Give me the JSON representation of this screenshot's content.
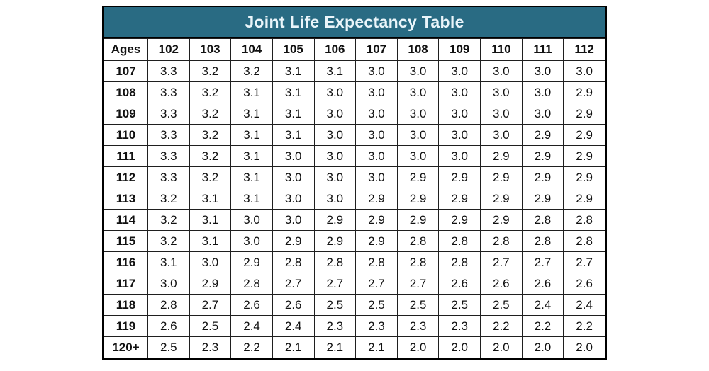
{
  "colors": {
    "title_bg": "#296b83",
    "title_text": "#eaf5fa",
    "border": "#1f1f1f",
    "cell_text": "#111111"
  },
  "chart_data": {
    "type": "table",
    "title": "Joint Life Expectancy Table",
    "columns": [
      "Ages",
      "102",
      "103",
      "104",
      "105",
      "106",
      "107",
      "108",
      "109",
      "110",
      "111",
      "112"
    ],
    "rows": [
      {
        "age": "107",
        "values": [
          "3.3",
          "3.2",
          "3.2",
          "3.1",
          "3.1",
          "3.0",
          "3.0",
          "3.0",
          "3.0",
          "3.0",
          "3.0"
        ]
      },
      {
        "age": "108",
        "values": [
          "3.3",
          "3.2",
          "3.1",
          "3.1",
          "3.0",
          "3.0",
          "3.0",
          "3.0",
          "3.0",
          "3.0",
          "2.9"
        ]
      },
      {
        "age": "109",
        "values": [
          "3.3",
          "3.2",
          "3.1",
          "3.1",
          "3.0",
          "3.0",
          "3.0",
          "3.0",
          "3.0",
          "3.0",
          "2.9"
        ]
      },
      {
        "age": "110",
        "values": [
          "3.3",
          "3.2",
          "3.1",
          "3.1",
          "3.0",
          "3.0",
          "3.0",
          "3.0",
          "3.0",
          "2.9",
          "2.9"
        ]
      },
      {
        "age": "111",
        "values": [
          "3.3",
          "3.2",
          "3.1",
          "3.0",
          "3.0",
          "3.0",
          "3.0",
          "3.0",
          "2.9",
          "2.9",
          "2.9"
        ]
      },
      {
        "age": "112",
        "values": [
          "3.3",
          "3.2",
          "3.1",
          "3.0",
          "3.0",
          "3.0",
          "2.9",
          "2.9",
          "2.9",
          "2.9",
          "2.9"
        ]
      },
      {
        "age": "113",
        "values": [
          "3.2",
          "3.1",
          "3.1",
          "3.0",
          "3.0",
          "2.9",
          "2.9",
          "2.9",
          "2.9",
          "2.9",
          "2.9"
        ]
      },
      {
        "age": "114",
        "values": [
          "3.2",
          "3.1",
          "3.0",
          "3.0",
          "2.9",
          "2.9",
          "2.9",
          "2.9",
          "2.9",
          "2.8",
          "2.8"
        ]
      },
      {
        "age": "115",
        "values": [
          "3.2",
          "3.1",
          "3.0",
          "2.9",
          "2.9",
          "2.9",
          "2.8",
          "2.8",
          "2.8",
          "2.8",
          "2.8"
        ]
      },
      {
        "age": "116",
        "values": [
          "3.1",
          "3.0",
          "2.9",
          "2.8",
          "2.8",
          "2.8",
          "2.8",
          "2.8",
          "2.7",
          "2.7",
          "2.7"
        ]
      },
      {
        "age": "117",
        "values": [
          "3.0",
          "2.9",
          "2.8",
          "2.7",
          "2.7",
          "2.7",
          "2.7",
          "2.6",
          "2.6",
          "2.6",
          "2.6"
        ]
      },
      {
        "age": "118",
        "values": [
          "2.8",
          "2.7",
          "2.6",
          "2.6",
          "2.5",
          "2.5",
          "2.5",
          "2.5",
          "2.5",
          "2.4",
          "2.4"
        ]
      },
      {
        "age": "119",
        "values": [
          "2.6",
          "2.5",
          "2.4",
          "2.4",
          "2.3",
          "2.3",
          "2.3",
          "2.3",
          "2.2",
          "2.2",
          "2.2"
        ]
      },
      {
        "age": "120+",
        "values": [
          "2.5",
          "2.3",
          "2.2",
          "2.1",
          "2.1",
          "2.1",
          "2.0",
          "2.0",
          "2.0",
          "2.0",
          "2.0"
        ]
      }
    ]
  }
}
